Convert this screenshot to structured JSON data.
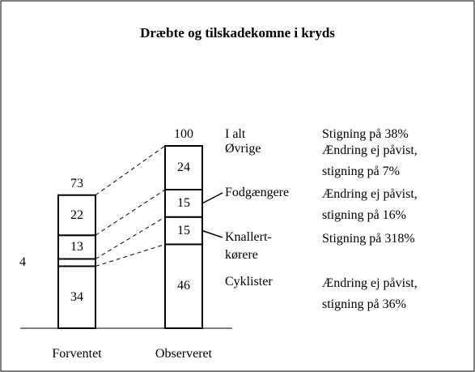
{
  "chart_data": {
    "type": "stacked_bar",
    "title": "Dræbte og tilskadekomne i kryds",
    "categories": [
      "Forventet",
      "Observeret"
    ],
    "series": [
      {
        "name": "Cyklister",
        "values": [
          34,
          46
        ],
        "note": "Ændring ej påvist,\nstigning på 36%",
        "leader": false
      },
      {
        "name": "Knallert-\nkørere",
        "values": [
          4,
          15
        ],
        "note": "Stigning på 318%",
        "leader": true
      },
      {
        "name": "Fodgængere",
        "values": [
          13,
          15
        ],
        "note": "Ændring ej påvist,\nstigning på 16%",
        "leader": true
      },
      {
        "name": "Øvrige",
        "values": [
          22,
          24
        ],
        "note": "Ændring ej påvist,\nstigning på 7%",
        "leader": false
      }
    ],
    "totals": [
      73,
      100
    ],
    "total_name": "I alt",
    "total_note": "Stigning på 38%",
    "color": "#ffffff",
    "ylim": [
      0,
      100
    ]
  }
}
